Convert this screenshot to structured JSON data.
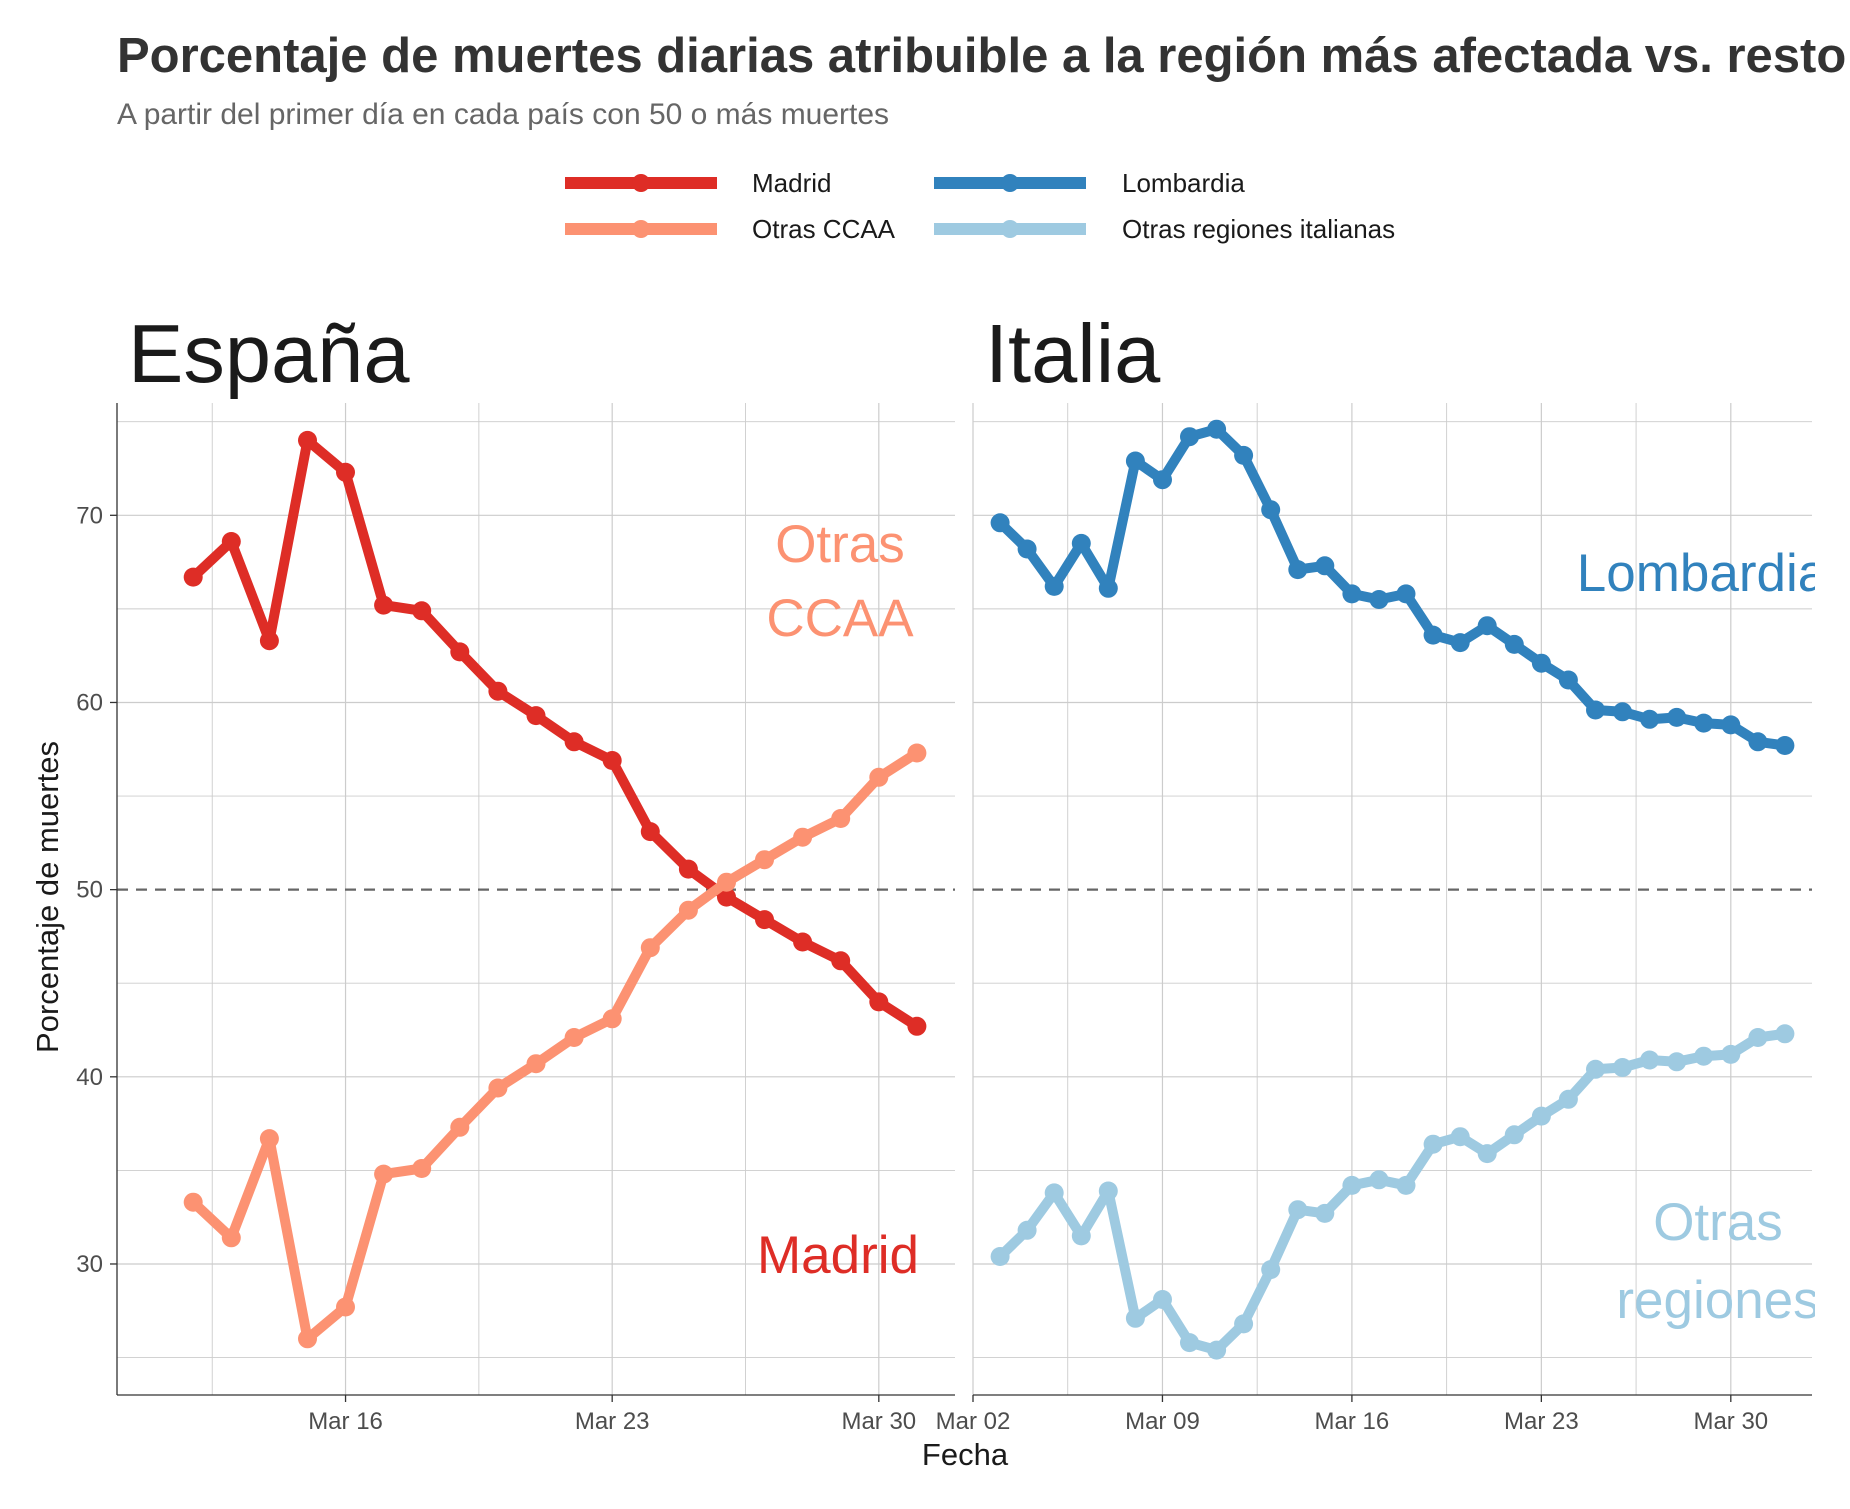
{
  "chart_data": {
    "type": "line",
    "title": "Porcentaje de muertes diarias atribuible a la región más afectada vs. resto del país",
    "subtitle": "A partir del primer día en cada país con 50 o más muertes",
    "xlabel": "Fecha",
    "ylabel": "Porcentaje de muertes",
    "ylim": [
      23,
      76
    ],
    "y_ticks": [
      30,
      40,
      50,
      60,
      70
    ],
    "reference_line": {
      "y": 50,
      "style": "dashed"
    },
    "grid": true,
    "legend_position": "top",
    "legend": [
      {
        "label": "Madrid",
        "color": "#de2d26"
      },
      {
        "label": "Lombardia",
        "color": "#3182bd"
      },
      {
        "label": "Otras CCAA",
        "color": "#fc9272"
      },
      {
        "label": "Otras regiones italianas",
        "color": "#9ecae1"
      }
    ],
    "panels": [
      {
        "title": "España",
        "x_ticks": [
          {
            "date": "2020-03-16",
            "label": "Mar 16"
          },
          {
            "date": "2020-03-23",
            "label": "Mar 23"
          },
          {
            "date": "2020-03-30",
            "label": "Mar 30"
          }
        ],
        "x_range": [
          "2020-03-10",
          "2020-04-01"
        ],
        "series": [
          {
            "name": "Madrid",
            "color": "#de2d26",
            "x": [
              "2020-03-12",
              "2020-03-13",
              "2020-03-14",
              "2020-03-15",
              "2020-03-16",
              "2020-03-17",
              "2020-03-18",
              "2020-03-19",
              "2020-03-20",
              "2020-03-21",
              "2020-03-22",
              "2020-03-23",
              "2020-03-24",
              "2020-03-25",
              "2020-03-26",
              "2020-03-27",
              "2020-03-28",
              "2020-03-29",
              "2020-03-30",
              "2020-03-31"
            ],
            "values": [
              66.7,
              68.6,
              63.3,
              74.0,
              72.3,
              65.2,
              64.9,
              62.7,
              60.6,
              59.3,
              57.9,
              56.9,
              53.1,
              51.1,
              49.6,
              48.4,
              47.2,
              46.2,
              44.0,
              42.7
            ]
          },
          {
            "name": "Otras CCAA",
            "color": "#fc9272",
            "x": [
              "2020-03-12",
              "2020-03-13",
              "2020-03-14",
              "2020-03-15",
              "2020-03-16",
              "2020-03-17",
              "2020-03-18",
              "2020-03-19",
              "2020-03-20",
              "2020-03-21",
              "2020-03-22",
              "2020-03-23",
              "2020-03-24",
              "2020-03-25",
              "2020-03-26",
              "2020-03-27",
              "2020-03-28",
              "2020-03-29",
              "2020-03-30",
              "2020-03-31"
            ],
            "values": [
              33.3,
              31.4,
              36.7,
              26.0,
              27.7,
              34.8,
              35.1,
              37.3,
              39.4,
              40.7,
              42.1,
              43.1,
              46.9,
              48.9,
              50.4,
              51.6,
              52.8,
              53.8,
              56.0,
              57.3
            ]
          }
        ],
        "direct_labels": [
          {
            "text": [
              "Otras",
              "CCAA"
            ],
            "color": "#fc9272"
          },
          {
            "text": [
              "Madrid"
            ],
            "color": "#de2d26"
          }
        ]
      },
      {
        "title": "Italia",
        "x_ticks": [
          {
            "date": "2020-03-02",
            "label": "Mar 02"
          },
          {
            "date": "2020-03-09",
            "label": "Mar 09"
          },
          {
            "date": "2020-03-16",
            "label": "Mar 16"
          },
          {
            "date": "2020-03-23",
            "label": "Mar 23"
          },
          {
            "date": "2020-03-30",
            "label": "Mar 30"
          }
        ],
        "x_range": [
          "2020-03-02",
          "2020-04-02"
        ],
        "series": [
          {
            "name": "Lombardia",
            "color": "#3182bd",
            "x": [
              "2020-03-03",
              "2020-03-04",
              "2020-03-05",
              "2020-03-06",
              "2020-03-07",
              "2020-03-08",
              "2020-03-09",
              "2020-03-10",
              "2020-03-11",
              "2020-03-12",
              "2020-03-13",
              "2020-03-14",
              "2020-03-15",
              "2020-03-16",
              "2020-03-17",
              "2020-03-18",
              "2020-03-19",
              "2020-03-20",
              "2020-03-21",
              "2020-03-22",
              "2020-03-23",
              "2020-03-24",
              "2020-03-25",
              "2020-03-26",
              "2020-03-27",
              "2020-03-28",
              "2020-03-29",
              "2020-03-30",
              "2020-03-31",
              "2020-04-01"
            ],
            "values": [
              69.6,
              68.2,
              66.2,
              68.5,
              66.1,
              72.9,
              71.9,
              74.2,
              74.6,
              73.2,
              70.3,
              67.1,
              67.3,
              65.8,
              65.5,
              65.8,
              63.6,
              63.2,
              64.1,
              63.1,
              62.1,
              61.2,
              59.6,
              59.5,
              59.1,
              59.2,
              58.9,
              58.8,
              57.9,
              57.7
            ]
          },
          {
            "name": "Otras regiones italianas",
            "color": "#9ecae1",
            "x": [
              "2020-03-03",
              "2020-03-04",
              "2020-03-05",
              "2020-03-06",
              "2020-03-07",
              "2020-03-08",
              "2020-03-09",
              "2020-03-10",
              "2020-03-11",
              "2020-03-12",
              "2020-03-13",
              "2020-03-14",
              "2020-03-15",
              "2020-03-16",
              "2020-03-17",
              "2020-03-18",
              "2020-03-19",
              "2020-03-20",
              "2020-03-21",
              "2020-03-22",
              "2020-03-23",
              "2020-03-24",
              "2020-03-25",
              "2020-03-26",
              "2020-03-27",
              "2020-03-28",
              "2020-03-29",
              "2020-03-30",
              "2020-03-31",
              "2020-04-01"
            ],
            "values": [
              30.4,
              31.8,
              33.8,
              31.5,
              33.9,
              27.1,
              28.1,
              25.8,
              25.4,
              26.8,
              29.7,
              32.9,
              32.7,
              34.2,
              34.5,
              34.2,
              36.4,
              36.8,
              35.9,
              36.9,
              37.9,
              38.8,
              40.4,
              40.5,
              40.9,
              40.8,
              41.1,
              41.2,
              42.1,
              42.3
            ]
          }
        ],
        "direct_labels": [
          {
            "text": [
              "Lombardia"
            ],
            "color": "#3182bd"
          },
          {
            "text": [
              "Otras",
              "regiones"
            ],
            "color": "#9ecae1"
          }
        ]
      }
    ]
  }
}
